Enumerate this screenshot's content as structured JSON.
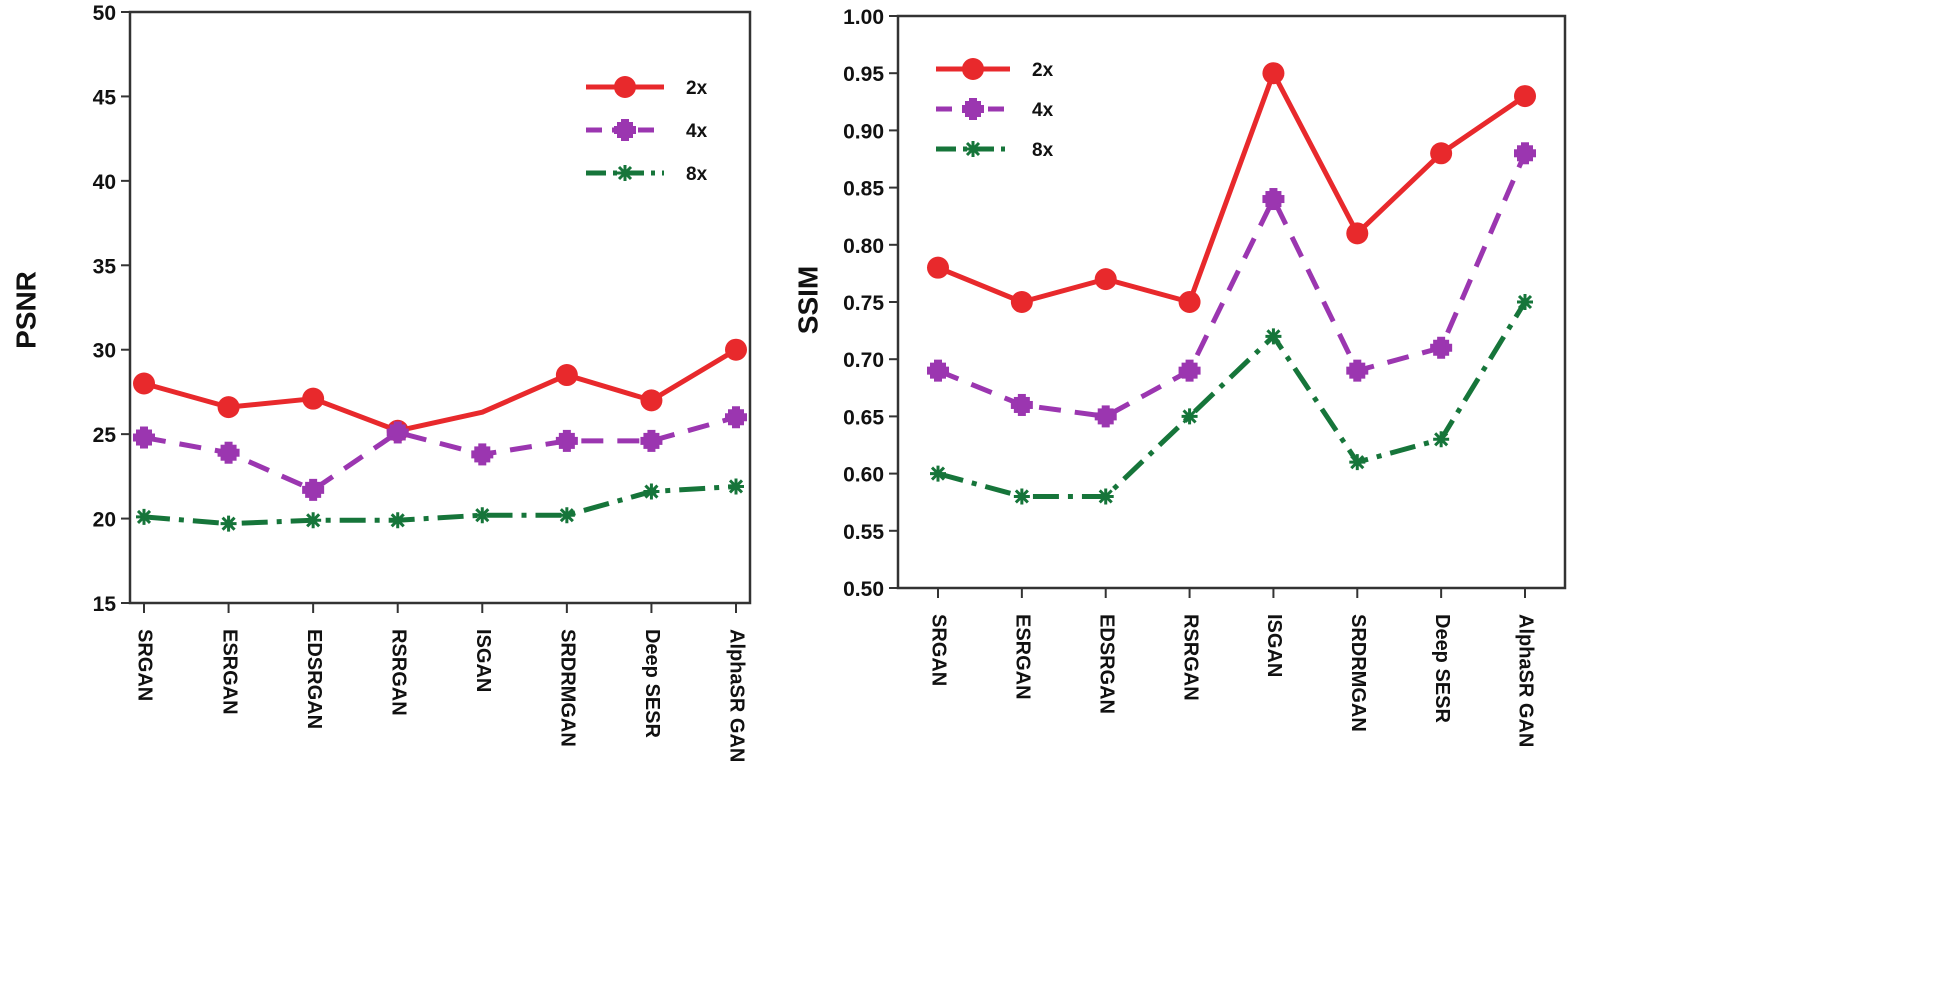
{
  "chart_data": [
    {
      "type": "line",
      "title": "",
      "xlabel": "",
      "ylabel": "PSNR",
      "ylim": [
        15,
        50
      ],
      "yticks": [
        "15",
        "20",
        "25",
        "30",
        "35",
        "40",
        "45",
        "50"
      ],
      "grid": false,
      "legend_position": "top-right",
      "categories": [
        "SRGAN",
        "ESRGAN",
        "EDSRGAN",
        "RSRGAN",
        "ISGAN",
        "SRDRMGAN",
        "Deep SESR",
        "AlphaSR GAN"
      ],
      "series": [
        {
          "name": "2x",
          "color": "#e8292c",
          "marker": "circle",
          "dash": "solid",
          "values": [
            28.0,
            26.6,
            27.1,
            25.2,
            26.3,
            28.5,
            27.0,
            30.0
          ],
          "markers": [
            true,
            true,
            true,
            true,
            false,
            true,
            true,
            true
          ]
        },
        {
          "name": "4x",
          "color": "#9b36b0",
          "marker": "square",
          "dash": "dash",
          "values": [
            24.8,
            23.9,
            21.7,
            25.1,
            23.8,
            24.6,
            24.6,
            26.0
          ],
          "markers": [
            true,
            true,
            true,
            true,
            true,
            true,
            true,
            true
          ]
        },
        {
          "name": "8x",
          "color": "#16753a",
          "marker": "asterisk",
          "dash": "dashdot",
          "values": [
            20.1,
            19.7,
            19.9,
            19.9,
            20.2,
            20.2,
            21.6,
            21.9
          ],
          "markers": [
            true,
            true,
            true,
            true,
            true,
            true,
            true,
            true
          ]
        }
      ]
    },
    {
      "type": "line",
      "title": "",
      "xlabel": "",
      "ylabel": "SSIM",
      "ylim": [
        0.5,
        1.0
      ],
      "yticks": [
        "0.50",
        "0.55",
        "0.60",
        "0.65",
        "0.70",
        "0.75",
        "0.80",
        "0.85",
        "0.90",
        "0.95",
        "1.00"
      ],
      "grid": false,
      "legend_position": "top-left",
      "categories": [
        "SRGAN",
        "ESRGAN",
        "EDSRGAN",
        "RSRGAN",
        "ISGAN",
        "SRDRMGAN",
        "Deep SESR",
        "AlphaSR GAN"
      ],
      "series": [
        {
          "name": "2x",
          "color": "#e8292c",
          "marker": "circle",
          "dash": "solid",
          "values": [
            0.78,
            0.75,
            0.77,
            0.75,
            0.95,
            0.81,
            0.88,
            0.93
          ],
          "markers": [
            true,
            true,
            true,
            true,
            true,
            true,
            true,
            true
          ]
        },
        {
          "name": "4x",
          "color": "#9b36b0",
          "marker": "square",
          "dash": "dash",
          "values": [
            0.69,
            0.66,
            0.65,
            0.69,
            0.84,
            0.69,
            0.71,
            0.88
          ],
          "markers": [
            true,
            true,
            true,
            true,
            true,
            true,
            true,
            true
          ]
        },
        {
          "name": "8x",
          "color": "#16753a",
          "marker": "asterisk",
          "dash": "dashdot",
          "values": [
            0.6,
            0.58,
            0.58,
            0.65,
            0.72,
            0.61,
            0.63,
            0.75
          ],
          "markers": [
            true,
            true,
            true,
            true,
            true,
            true,
            true,
            true
          ]
        }
      ]
    }
  ]
}
